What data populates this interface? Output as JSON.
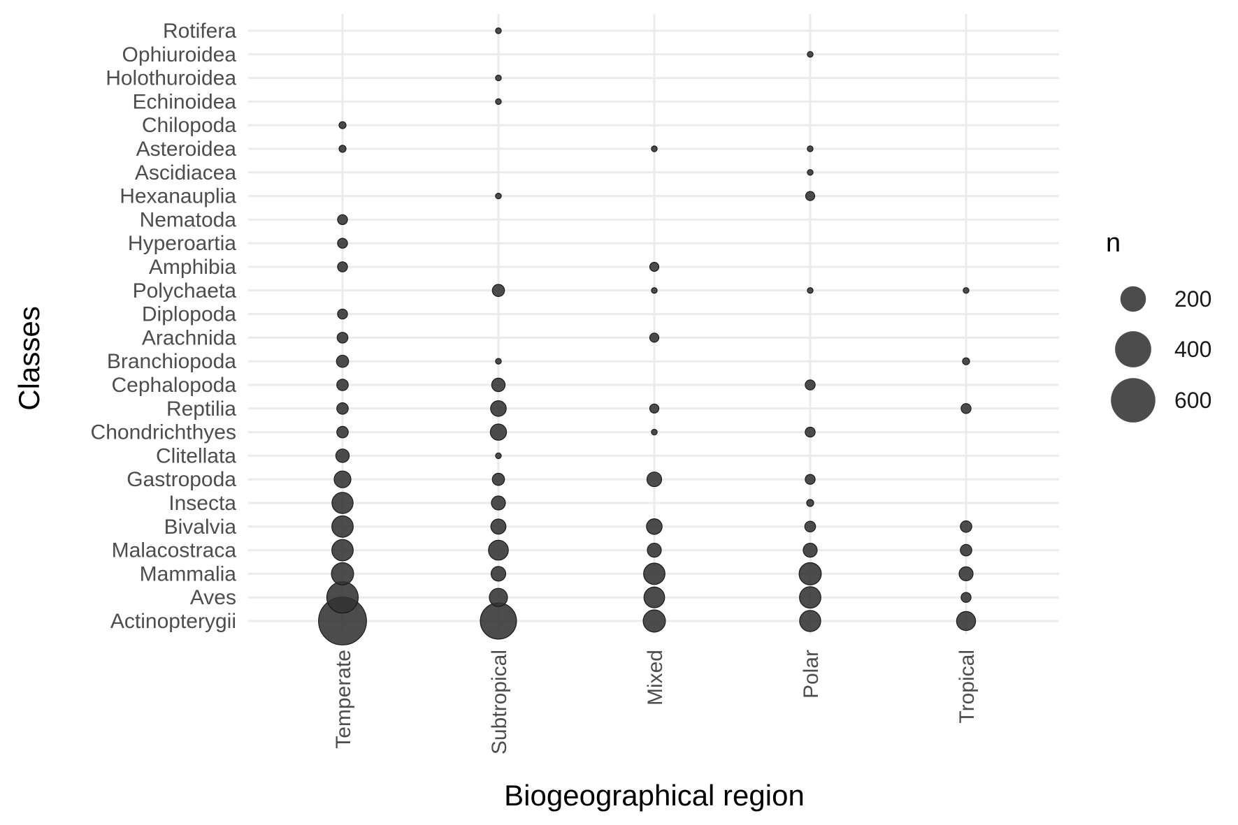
{
  "chart_data": {
    "type": "scatter",
    "subtype": "bubble",
    "xlabel": "Biogeographical region",
    "ylabel": "Classes",
    "x_categories": [
      "Temperate",
      "Subtropical",
      "Mixed",
      "Polar",
      "Tropical"
    ],
    "y_categories": [
      "Actinopterygii",
      "Aves",
      "Mammalia",
      "Malacostraca",
      "Bivalvia",
      "Insecta",
      "Gastropoda",
      "Clitellata",
      "Chondrichthyes",
      "Reptilia",
      "Cephalopoda",
      "Branchiopoda",
      "Arachnida",
      "Diplopoda",
      "Polychaeta",
      "Amphibia",
      "Hyperoartia",
      "Nematoda",
      "Hexanauplia",
      "Ascidiacea",
      "Asteroidea",
      "Chilopoda",
      "Echinoidea",
      "Holothuroidea",
      "Ophiuroidea",
      "Rotifera"
    ],
    "points": [
      {
        "x": "Temperate",
        "y": "Actinopterygii",
        "n": 700
      },
      {
        "x": "Temperate",
        "y": "Aves",
        "n": 300
      },
      {
        "x": "Temperate",
        "y": "Mammalia",
        "n": 150
      },
      {
        "x": "Temperate",
        "y": "Malacostraca",
        "n": 140
      },
      {
        "x": "Temperate",
        "y": "Bivalvia",
        "n": 140
      },
      {
        "x": "Temperate",
        "y": "Insecta",
        "n": 135
      },
      {
        "x": "Temperate",
        "y": "Gastropoda",
        "n": 85
      },
      {
        "x": "Temperate",
        "y": "Clitellata",
        "n": 55
      },
      {
        "x": "Temperate",
        "y": "Chondrichthyes",
        "n": 40
      },
      {
        "x": "Temperate",
        "y": "Reptilia",
        "n": 40
      },
      {
        "x": "Temperate",
        "y": "Cephalopoda",
        "n": 40
      },
      {
        "x": "Temperate",
        "y": "Branchiopoda",
        "n": 45
      },
      {
        "x": "Temperate",
        "y": "Arachnida",
        "n": 35
      },
      {
        "x": "Temperate",
        "y": "Diplopoda",
        "n": 30
      },
      {
        "x": "Temperate",
        "y": "Amphibia",
        "n": 30
      },
      {
        "x": "Temperate",
        "y": "Hyperoartia",
        "n": 30
      },
      {
        "x": "Temperate",
        "y": "Nematoda",
        "n": 30
      },
      {
        "x": "Temperate",
        "y": "Asteroidea",
        "n": 15
      },
      {
        "x": "Temperate",
        "y": "Chilopoda",
        "n": 15
      },
      {
        "x": "Subtropical",
        "y": "Actinopterygii",
        "n": 400
      },
      {
        "x": "Subtropical",
        "y": "Aves",
        "n": 100
      },
      {
        "x": "Subtropical",
        "y": "Mammalia",
        "n": 65
      },
      {
        "x": "Subtropical",
        "y": "Malacostraca",
        "n": 120
      },
      {
        "x": "Subtropical",
        "y": "Bivalvia",
        "n": 70
      },
      {
        "x": "Subtropical",
        "y": "Insecta",
        "n": 60
      },
      {
        "x": "Subtropical",
        "y": "Gastropoda",
        "n": 45
      },
      {
        "x": "Subtropical",
        "y": "Clitellata",
        "n": 10
      },
      {
        "x": "Subtropical",
        "y": "Chondrichthyes",
        "n": 80
      },
      {
        "x": "Subtropical",
        "y": "Reptilia",
        "n": 75
      },
      {
        "x": "Subtropical",
        "y": "Cephalopoda",
        "n": 55
      },
      {
        "x": "Subtropical",
        "y": "Branchiopoda",
        "n": 10
      },
      {
        "x": "Subtropical",
        "y": "Polychaeta",
        "n": 45
      },
      {
        "x": "Subtropical",
        "y": "Hexanauplia",
        "n": 10
      },
      {
        "x": "Subtropical",
        "y": "Echinoidea",
        "n": 10
      },
      {
        "x": "Subtropical",
        "y": "Holothuroidea",
        "n": 10
      },
      {
        "x": "Subtropical",
        "y": "Rotifera",
        "n": 10
      },
      {
        "x": "Mixed",
        "y": "Actinopterygii",
        "n": 150
      },
      {
        "x": "Mixed",
        "y": "Aves",
        "n": 130
      },
      {
        "x": "Mixed",
        "y": "Mammalia",
        "n": 140
      },
      {
        "x": "Mixed",
        "y": "Malacostraca",
        "n": 60
      },
      {
        "x": "Mixed",
        "y": "Bivalvia",
        "n": 75
      },
      {
        "x": "Mixed",
        "y": "Gastropoda",
        "n": 65
      },
      {
        "x": "Mixed",
        "y": "Chondrichthyes",
        "n": 10
      },
      {
        "x": "Mixed",
        "y": "Reptilia",
        "n": 25
      },
      {
        "x": "Mixed",
        "y": "Arachnida",
        "n": 25
      },
      {
        "x": "Mixed",
        "y": "Polychaeta",
        "n": 10
      },
      {
        "x": "Mixed",
        "y": "Amphibia",
        "n": 25
      },
      {
        "x": "Mixed",
        "y": "Asteroidea",
        "n": 10
      },
      {
        "x": "Polar",
        "y": "Actinopterygii",
        "n": 135
      },
      {
        "x": "Polar",
        "y": "Aves",
        "n": 140
      },
      {
        "x": "Polar",
        "y": "Mammalia",
        "n": 150
      },
      {
        "x": "Polar",
        "y": "Malacostraca",
        "n": 60
      },
      {
        "x": "Polar",
        "y": "Bivalvia",
        "n": 35
      },
      {
        "x": "Polar",
        "y": "Insecta",
        "n": 15
      },
      {
        "x": "Polar",
        "y": "Gastropoda",
        "n": 30
      },
      {
        "x": "Polar",
        "y": "Chondrichthyes",
        "n": 30
      },
      {
        "x": "Polar",
        "y": "Cephalopoda",
        "n": 30
      },
      {
        "x": "Polar",
        "y": "Polychaeta",
        "n": 10
      },
      {
        "x": "Polar",
        "y": "Hexanauplia",
        "n": 25
      },
      {
        "x": "Polar",
        "y": "Ascidiacea",
        "n": 10
      },
      {
        "x": "Polar",
        "y": "Asteroidea",
        "n": 10
      },
      {
        "x": "Polar",
        "y": "Ophiuroidea",
        "n": 10
      },
      {
        "x": "Tropical",
        "y": "Actinopterygii",
        "n": 110
      },
      {
        "x": "Tropical",
        "y": "Aves",
        "n": 30
      },
      {
        "x": "Tropical",
        "y": "Mammalia",
        "n": 60
      },
      {
        "x": "Tropical",
        "y": "Malacostraca",
        "n": 40
      },
      {
        "x": "Tropical",
        "y": "Bivalvia",
        "n": 40
      },
      {
        "x": "Tropical",
        "y": "Reptilia",
        "n": 30
      },
      {
        "x": "Tropical",
        "y": "Branchiopoda",
        "n": 15
      },
      {
        "x": "Tropical",
        "y": "Polychaeta",
        "n": 10
      }
    ],
    "size_legend": {
      "title": "n",
      "values": [
        200,
        400,
        600
      ],
      "labels": [
        "200",
        "400",
        "600"
      ]
    },
    "grid": true,
    "legend_position": "right",
    "colors": {
      "point": "#333333",
      "grid": "#ebebeb"
    }
  }
}
